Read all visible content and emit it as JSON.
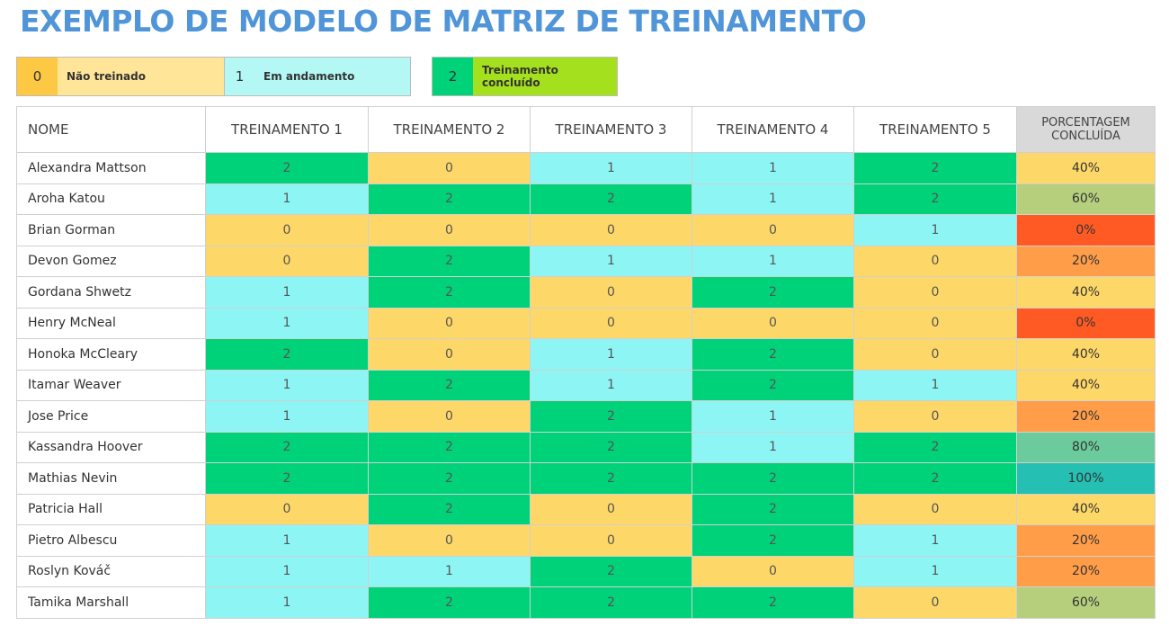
{
  "header": {
    "title": "EXEMPLO DE MODELO DE MATRIZ DE TREINAMENTO"
  },
  "legend": {
    "items": [
      {
        "value": 0,
        "label": "Não treinado",
        "value_color": "#fdc843",
        "label_color": "#fee598"
      },
      {
        "value": 1,
        "label": "Em andamento",
        "value_color": "#b3f8f5",
        "label_color": "#b3f8f5"
      },
      {
        "value": 2,
        "label": "Treinamento concluído",
        "value_color": "#00d27a",
        "label_color": "#a5e01f"
      }
    ]
  },
  "table": {
    "columns": [
      "NOME",
      "TREINAMENTO 1",
      "TREINAMENTO 2",
      "TREINAMENTO 3",
      "TREINAMENTO 4",
      "TREINAMENTO 5",
      "PORCENTAGEM CONCLUÍDA"
    ],
    "value_colors": [
      "#fdd868",
      "#8ef5f5",
      "#00d27a"
    ],
    "rows": [
      {
        "name": "Alexandra Mattson",
        "values": [
          2,
          0,
          1,
          1,
          2
        ],
        "percent": "40%",
        "percent_color": "#fdd868"
      },
      {
        "name": "Aroha Katou",
        "values": [
          1,
          2,
          2,
          1,
          2
        ],
        "percent": "60%",
        "percent_color": "#b5cf7d"
      },
      {
        "name": "Brian Gorman",
        "values": [
          0,
          0,
          0,
          0,
          1
        ],
        "percent": "0%",
        "percent_color": "#ff5a24"
      },
      {
        "name": "Devon Gomez",
        "values": [
          0,
          2,
          1,
          1,
          0
        ],
        "percent": "20%",
        "percent_color": "#ff9d48"
      },
      {
        "name": "Gordana Shwetz",
        "values": [
          1,
          2,
          0,
          2,
          0
        ],
        "percent": "40%",
        "percent_color": "#fdd868"
      },
      {
        "name": "Henry McNeal",
        "values": [
          1,
          0,
          0,
          0,
          0
        ],
        "percent": "0%",
        "percent_color": "#ff5a24"
      },
      {
        "name": "Honoka McCleary",
        "values": [
          2,
          0,
          1,
          2,
          0
        ],
        "percent": "40%",
        "percent_color": "#fdd868"
      },
      {
        "name": "Itamar Weaver",
        "values": [
          1,
          2,
          1,
          2,
          1
        ],
        "percent": "40%",
        "percent_color": "#fdd868"
      },
      {
        "name": "Jose Price",
        "values": [
          1,
          0,
          2,
          1,
          0
        ],
        "percent": "20%",
        "percent_color": "#ff9d48"
      },
      {
        "name": "Kassandra Hoover",
        "values": [
          2,
          2,
          2,
          1,
          2
        ],
        "percent": "80%",
        "percent_color": "#6ccb9c"
      },
      {
        "name": "Mathias Nevin",
        "values": [
          2,
          2,
          2,
          2,
          2
        ],
        "percent": "100%",
        "percent_color": "#26bfb3"
      },
      {
        "name": "Patricia Hall",
        "values": [
          0,
          2,
          0,
          2,
          0
        ],
        "percent": "40%",
        "percent_color": "#fdd868"
      },
      {
        "name": "Pietro Albescu",
        "values": [
          1,
          0,
          0,
          2,
          1
        ],
        "percent": "20%",
        "percent_color": "#ff9d48"
      },
      {
        "name": "Roslyn Kováč",
        "values": [
          1,
          1,
          2,
          0,
          1
        ],
        "percent": "20%",
        "percent_color": "#ff9d48"
      },
      {
        "name": "Tamika Marshall",
        "values": [
          1,
          2,
          2,
          2,
          0
        ],
        "percent": "60%",
        "percent_color": "#b5cf7d"
      }
    ]
  }
}
